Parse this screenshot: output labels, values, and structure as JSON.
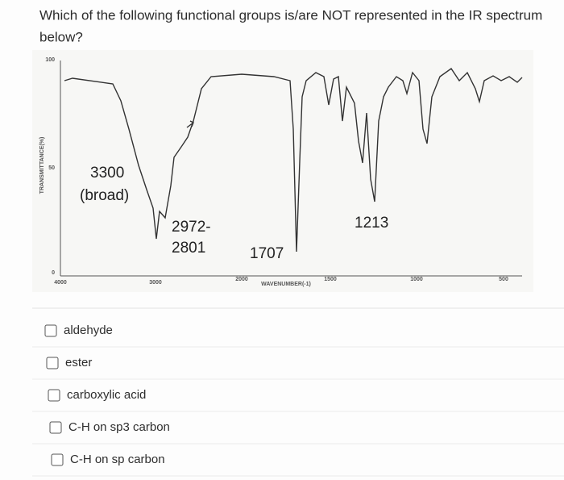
{
  "question": "Which of the following functional groups is/are NOT represented in the IR spectrum below?",
  "question_lines": [
    "Which of the following functional groups is/are NOT represented in the IR spectrum",
    "below?"
  ],
  "spectrum": {
    "y_axis_label": "TRANSMITTANCE(%)",
    "x_axis_label": "WAVENUMBER(-1)",
    "y_ticks": [
      "100",
      "50",
      "0"
    ],
    "x_ticks": [
      "4000",
      "3000",
      "2000",
      "1500",
      "1000",
      "500"
    ],
    "annotations": [
      "3300",
      "(broad)",
      "2972-",
      "2801",
      "1707",
      "1213"
    ]
  },
  "options": [
    "aldehyde",
    "ester",
    "carboxylic acid",
    "C-H on sp3 carbon",
    "C-H on sp carbon"
  ]
}
